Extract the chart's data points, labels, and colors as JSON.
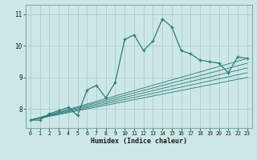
{
  "title": "",
  "xlabel": "Humidex (Indice chaleur)",
  "xlim": [
    -0.5,
    23.5
  ],
  "ylim": [
    7.4,
    11.3
  ],
  "yticks": [
    8,
    9,
    10,
    11
  ],
  "xticks": [
    0,
    1,
    2,
    3,
    4,
    5,
    6,
    7,
    8,
    9,
    10,
    11,
    12,
    13,
    14,
    15,
    16,
    17,
    18,
    19,
    20,
    21,
    22,
    23
  ],
  "bg_color": "#cce8e6",
  "line_color": "#2d7d78",
  "grid_color_major": "#b0ccca",
  "grid_color_minor": "#daecea",
  "main_x": [
    0,
    1,
    2,
    3,
    4,
    5,
    6,
    7,
    8,
    9,
    10,
    11,
    12,
    13,
    14,
    15,
    16,
    17,
    18,
    19,
    20,
    21,
    22,
    23
  ],
  "main_y": [
    7.65,
    7.65,
    7.85,
    7.95,
    8.05,
    7.8,
    8.6,
    8.75,
    8.35,
    8.85,
    10.2,
    10.35,
    9.85,
    10.15,
    10.85,
    10.6,
    9.85,
    9.75,
    9.55,
    9.5,
    9.45,
    9.15,
    9.65,
    9.6
  ],
  "trend_lines": [
    {
      "x0": 0,
      "y0": 7.65,
      "x1": 23,
      "y1": 9.6
    },
    {
      "x0": 0,
      "y0": 7.65,
      "x1": 23,
      "y1": 9.45
    },
    {
      "x0": 0,
      "y0": 7.65,
      "x1": 23,
      "y1": 9.3
    },
    {
      "x0": 0,
      "y0": 7.65,
      "x1": 23,
      "y1": 9.15
    },
    {
      "x0": 0,
      "y0": 7.65,
      "x1": 23,
      "y1": 9.0
    }
  ]
}
